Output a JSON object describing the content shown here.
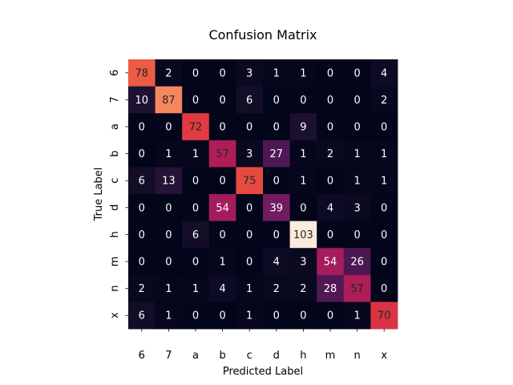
{
  "chart_data": {
    "type": "heatmap",
    "title": "Confusion Matrix",
    "xlabel": "Predicted Label",
    "ylabel": "True Label",
    "x_categories": [
      "6",
      "7",
      "a",
      "b",
      "c",
      "d",
      "h",
      "m",
      "n",
      "x"
    ],
    "y_categories": [
      "6",
      "7",
      "a",
      "b",
      "c",
      "d",
      "h",
      "m",
      "n",
      "x"
    ],
    "values": [
      [
        78,
        2,
        0,
        0,
        3,
        1,
        1,
        0,
        0,
        4
      ],
      [
        10,
        87,
        0,
        0,
        6,
        0,
        0,
        0,
        0,
        2
      ],
      [
        0,
        0,
        72,
        0,
        0,
        0,
        9,
        0,
        0,
        0
      ],
      [
        0,
        1,
        1,
        57,
        3,
        27,
        1,
        2,
        1,
        1
      ],
      [
        6,
        13,
        0,
        0,
        75,
        0,
        1,
        0,
        1,
        1
      ],
      [
        0,
        0,
        0,
        54,
        0,
        39,
        0,
        4,
        3,
        0
      ],
      [
        0,
        0,
        6,
        0,
        0,
        0,
        103,
        0,
        0,
        0
      ],
      [
        0,
        0,
        0,
        1,
        0,
        4,
        3,
        54,
        26,
        0
      ],
      [
        2,
        1,
        1,
        4,
        1,
        2,
        2,
        28,
        57,
        0
      ],
      [
        6,
        1,
        0,
        0,
        1,
        0,
        0,
        0,
        1,
        70
      ]
    ],
    "value_range": [
      0,
      103
    ],
    "colormap": "rocket",
    "colorbar": false,
    "annotated": true
  }
}
